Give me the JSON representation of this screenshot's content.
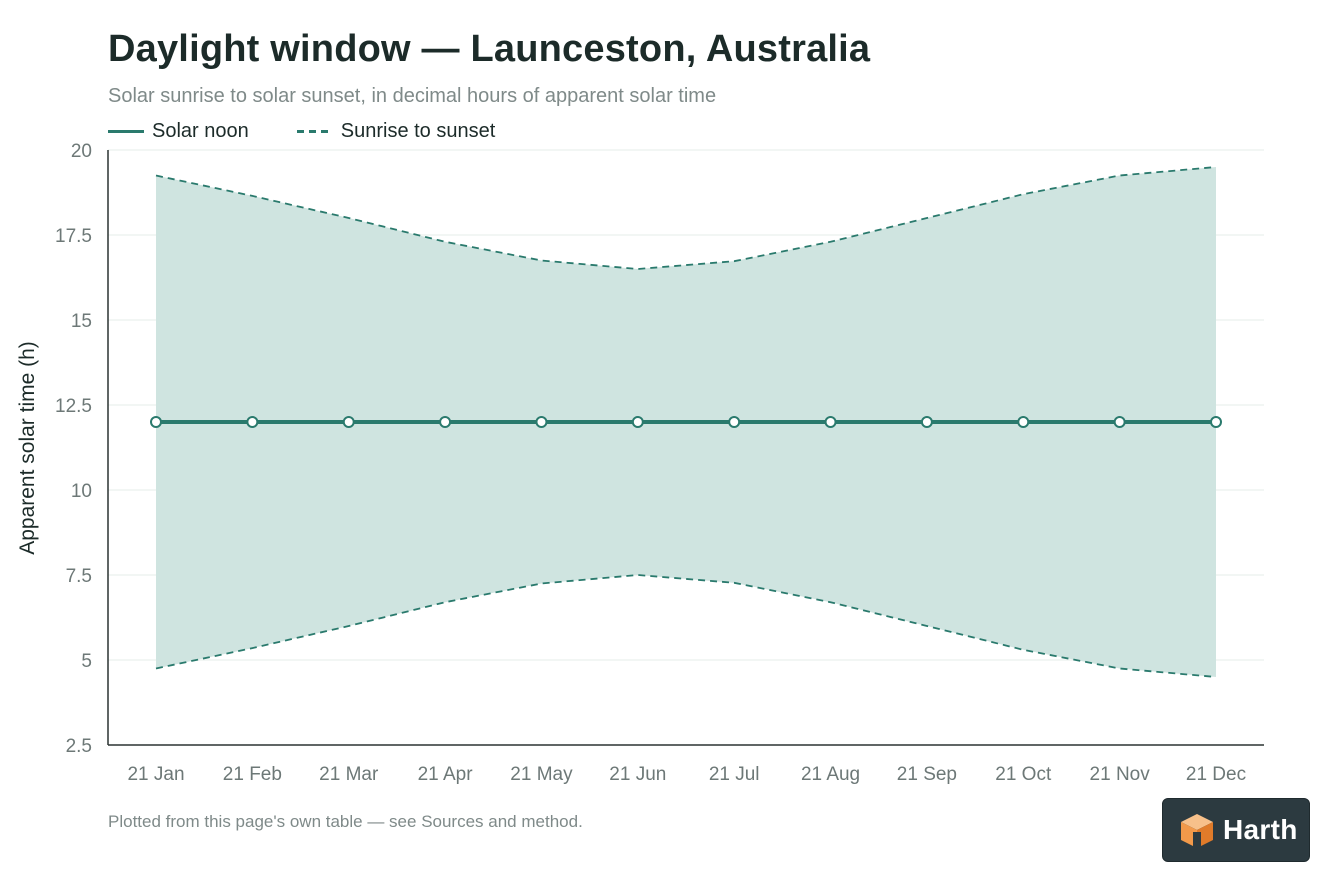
{
  "title": "Daylight window — Launceston, Australia",
  "subtitle": "Solar sunrise to solar sunset, in decimal hours of apparent solar time",
  "footnote": "Plotted from this page's own table — see Sources and method.",
  "logo": {
    "text": "Harth",
    "icon": "cube-icon"
  },
  "colors": {
    "line": "#2a7a6d",
    "band": "#cfe4e0",
    "grid": "#e6ecea",
    "axis": "#2b3432"
  },
  "chart_data": {
    "type": "area",
    "title": "Daylight window — Launceston, Australia",
    "subtitle": "Solar sunrise to solar sunset, in decimal hours of apparent solar time",
    "xlabel": "",
    "ylabel": "Apparent solar time (h)",
    "ylim": [
      2.5,
      20
    ],
    "yticks": [
      "2.5",
      "5",
      "7.5",
      "10",
      "12.5",
      "15",
      "17.5",
      "20"
    ],
    "ytick_values": [
      2.5,
      5,
      7.5,
      10,
      12.5,
      15,
      17.5,
      20
    ],
    "categories": [
      "21 Jan",
      "21 Feb",
      "21 Mar",
      "21 Apr",
      "21 May",
      "21 Jun",
      "21 Jul",
      "21 Aug",
      "21 Sep",
      "21 Oct",
      "21 Nov",
      "21 Dec"
    ],
    "grid": true,
    "legend_position": "top-left",
    "series": [
      {
        "name": "Solar noon",
        "style": "solid",
        "markers": true,
        "values": [
          12,
          12,
          12,
          12,
          12,
          12,
          12,
          12,
          12,
          12,
          12,
          12
        ]
      },
      {
        "name": "Sunrise to sunset",
        "style": "dashed",
        "band": true,
        "low": [
          4.75,
          5.35,
          6.0,
          6.7,
          7.25,
          7.5,
          7.27,
          6.7,
          6.0,
          5.3,
          4.75,
          4.5
        ],
        "high": [
          19.25,
          18.65,
          18.0,
          17.3,
          16.75,
          16.5,
          16.73,
          17.3,
          18.0,
          18.7,
          19.25,
          19.5
        ]
      }
    ]
  }
}
